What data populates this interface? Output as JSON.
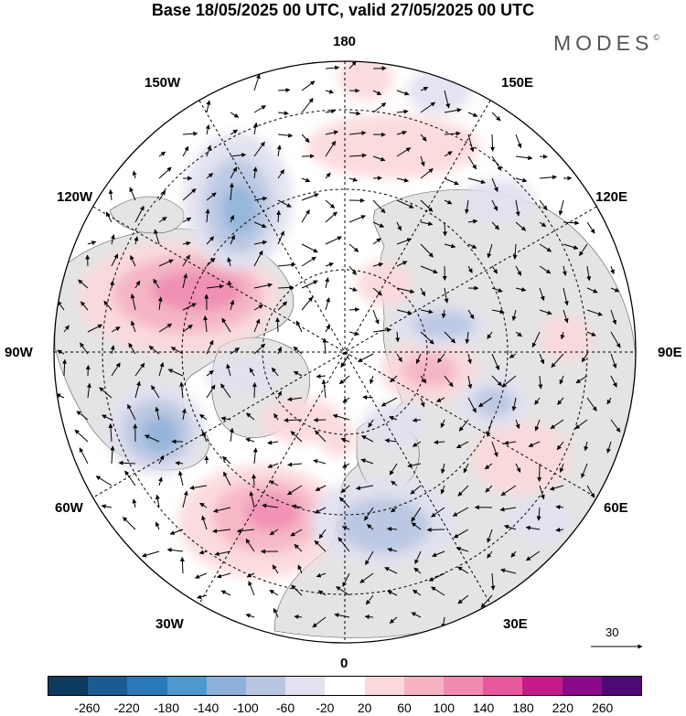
{
  "title": "Base 18/05/2025 00 UTC, valid 27/05/2025 00 UTC",
  "brand": "MODES",
  "brand_mark": "©",
  "longitude_labels": {
    "top": "180",
    "top_left": "150W",
    "top_right": "150E",
    "upper_left": "120W",
    "upper_right": "120E",
    "left": "90W",
    "right": "90E",
    "lower_left": "60W",
    "lower_right": "60E",
    "bottom_left": "30W",
    "bottom_right": "30E",
    "bottom": "0"
  },
  "reference_vector": "30",
  "colorbar": {
    "colors": [
      "#0c3b5e",
      "#1a5c91",
      "#2a7ab9",
      "#4f98cc",
      "#8fb1d9",
      "#b9c6e2",
      "#e1e1f0",
      "#ffffff",
      "#fbd9db",
      "#f7b2c2",
      "#f089b0",
      "#e8569c",
      "#c51b8a",
      "#8b0a8a",
      "#4d0a75"
    ],
    "labels": [
      "-260",
      "-220",
      "-180",
      "-140",
      "-100",
      "-60",
      "-20",
      "20",
      "60",
      "100",
      "140",
      "180",
      "220",
      "260"
    ]
  },
  "map": {
    "land_color": "#e4e4e4",
    "ocean_color": "#ffffff",
    "grid_style": "dashed",
    "anomaly_features": [
      {
        "sign": "negative",
        "level": -100,
        "region": "North Pacific / Alaska"
      },
      {
        "sign": "positive",
        "level": 140,
        "region": "Canada / Hudson Bay"
      },
      {
        "sign": "negative",
        "level": -100,
        "region": "Greenland / Labrador"
      },
      {
        "sign": "positive",
        "level": 140,
        "region": "North Atlantic"
      },
      {
        "sign": "negative",
        "level": -60,
        "region": "Scandinavia / Europe"
      },
      {
        "sign": "negative",
        "level": -100,
        "region": "Central Siberia"
      },
      {
        "sign": "positive",
        "level": 60,
        "region": "Western Siberia"
      },
      {
        "sign": "negative",
        "level": -100,
        "region": "West Siberian Plain"
      },
      {
        "sign": "positive",
        "level": 60,
        "region": "Bering Sea / Arctic Pacific"
      }
    ]
  }
}
